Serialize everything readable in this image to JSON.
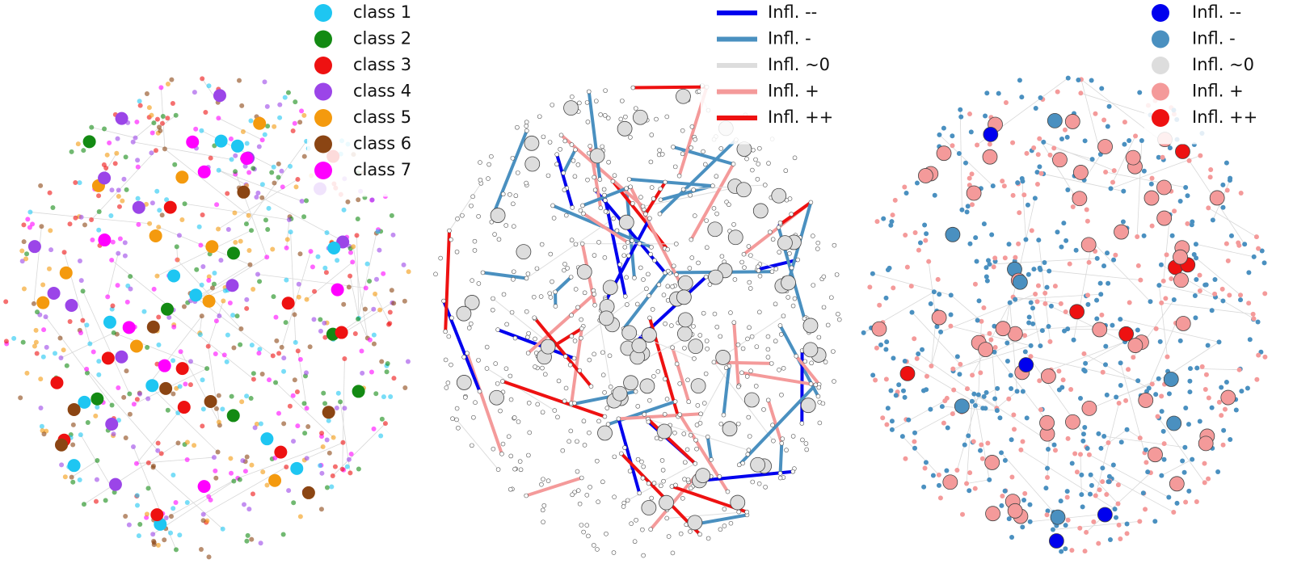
{
  "panels": [
    {
      "legend": [
        {
          "label": "class 1",
          "color": "#1ec6f2"
        },
        {
          "label": "class 2",
          "color": "#138a13"
        },
        {
          "label": "class 3",
          "color": "#ee1111"
        },
        {
          "label": "class 4",
          "color": "#9b45e8"
        },
        {
          "label": "class 5",
          "color": "#f49a0e"
        },
        {
          "label": "class 6",
          "color": "#8b4513"
        },
        {
          "label": "class 7",
          "color": "#ff00ff"
        }
      ]
    },
    {
      "legend": [
        {
          "label": "Infl. --",
          "color": "#0000ee"
        },
        {
          "label": "Infl. -",
          "color": "#4a90c0"
        },
        {
          "label": "Infl. ~0",
          "color": "#dddddd"
        },
        {
          "label": "Infl. +",
          "color": "#f49a9a"
        },
        {
          "label": "Infl. ++",
          "color": "#ee1111"
        }
      ]
    },
    {
      "legend": [
        {
          "label": "Infl. --",
          "color": "#0000ee"
        },
        {
          "label": "Infl. -",
          "color": "#4a90c0"
        },
        {
          "label": "Infl. ~0",
          "color": "#dddddd"
        },
        {
          "label": "Infl. +",
          "color": "#f49a9a"
        },
        {
          "label": "Infl. ++",
          "color": "#ee1111"
        }
      ]
    }
  ]
}
